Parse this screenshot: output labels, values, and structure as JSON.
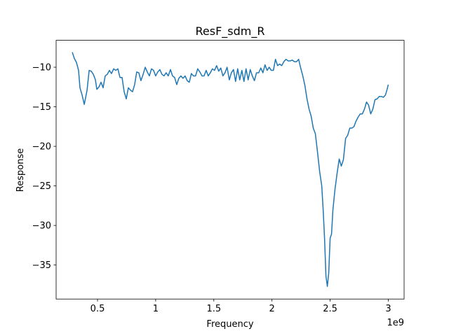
{
  "chart_data": {
    "type": "line",
    "title": "ResF_sdm_R",
    "xlabel": "Frequency",
    "ylabel": "Response",
    "x_offset": "1e9",
    "x": [
      0.283,
      0.301,
      0.319,
      0.337,
      0.349,
      0.367,
      0.386,
      0.398,
      0.41,
      0.428,
      0.446,
      0.464,
      0.482,
      0.494,
      0.512,
      0.53,
      0.548,
      0.566,
      0.584,
      0.602,
      0.62,
      0.639,
      0.657,
      0.675,
      0.693,
      0.711,
      0.729,
      0.747,
      0.765,
      0.783,
      0.801,
      0.819,
      0.837,
      0.855,
      0.873,
      0.892,
      0.91,
      0.928,
      0.946,
      0.964,
      0.982,
      1.0,
      1.018,
      1.036,
      1.054,
      1.072,
      1.09,
      1.108,
      1.127,
      1.145,
      1.163,
      1.181,
      1.199,
      1.217,
      1.235,
      1.253,
      1.271,
      1.289,
      1.307,
      1.325,
      1.343,
      1.361,
      1.38,
      1.398,
      1.416,
      1.434,
      1.452,
      1.47,
      1.488,
      1.506,
      1.524,
      1.542,
      1.56,
      1.578,
      1.596,
      1.614,
      1.633,
      1.651,
      1.669,
      1.687,
      1.705,
      1.723,
      1.741,
      1.759,
      1.777,
      1.795,
      1.813,
      1.831,
      1.849,
      1.867,
      1.886,
      1.904,
      1.922,
      1.94,
      1.958,
      1.976,
      1.994,
      2.012,
      2.03,
      2.048,
      2.066,
      2.084,
      2.102,
      2.12,
      2.139,
      2.157,
      2.175,
      2.193,
      2.211,
      2.229,
      2.247,
      2.265,
      2.283,
      2.301,
      2.319,
      2.337,
      2.355,
      2.373,
      2.392,
      2.41,
      2.428,
      2.44,
      2.452,
      2.464,
      2.476,
      2.488,
      2.5,
      2.512,
      2.524,
      2.542,
      2.56,
      2.578,
      2.596,
      2.614,
      2.633,
      2.651,
      2.669,
      2.687,
      2.705,
      2.723,
      2.741,
      2.759,
      2.777,
      2.795,
      2.813,
      2.831,
      2.849,
      2.867,
      2.886,
      2.904,
      2.922,
      2.94,
      2.958,
      2.976,
      2.988,
      3.0
    ],
    "series": [
      {
        "name": "ResF_sdm_R",
        "color": "#1f77b4",
        "values": [
          -8.1,
          -8.9,
          -9.4,
          -10.4,
          -12.6,
          -13.5,
          -14.7,
          -13.8,
          -12.9,
          -10.4,
          -10.5,
          -10.9,
          -11.6,
          -12.8,
          -12.5,
          -11.9,
          -12.6,
          -11.1,
          -10.9,
          -10.4,
          -10.8,
          -10.2,
          -10.4,
          -10.2,
          -11.3,
          -11.3,
          -13.1,
          -14.0,
          -12.6,
          -12.9,
          -13.1,
          -12.2,
          -10.6,
          -10.7,
          -11.7,
          -10.9,
          -10.0,
          -10.6,
          -11.1,
          -10.2,
          -10.4,
          -11.1,
          -10.6,
          -10.3,
          -10.9,
          -11.1,
          -10.7,
          -11.1,
          -10.3,
          -11.1,
          -11.3,
          -12.2,
          -11.4,
          -11.1,
          -11.4,
          -11.1,
          -11.7,
          -11.9,
          -10.8,
          -11.1,
          -11.1,
          -10.2,
          -10.6,
          -11.1,
          -11.1,
          -10.4,
          -11.1,
          -10.7,
          -10.2,
          -10.4,
          -9.8,
          -10.5,
          -10.1,
          -11.1,
          -10.7,
          -10.0,
          -11.6,
          -10.7,
          -10.3,
          -11.8,
          -10.2,
          -11.6,
          -10.4,
          -11.8,
          -10.2,
          -11.6,
          -10.3,
          -11.1,
          -11.7,
          -10.7,
          -10.7,
          -10.1,
          -10.7,
          -9.7,
          -10.4,
          -10.0,
          -10.4,
          -10.4,
          -9.0,
          -9.8,
          -9.6,
          -9.8,
          -9.3,
          -9.0,
          -9.2,
          -9.2,
          -9.1,
          -9.3,
          -9.3,
          -9.0,
          -10.1,
          -11.1,
          -12.3,
          -14.0,
          -15.3,
          -16.2,
          -17.7,
          -18.4,
          -20.8,
          -23.2,
          -25.0,
          -28.0,
          -31.6,
          -36.4,
          -37.7,
          -36.0,
          -31.6,
          -31.1,
          -28.0,
          -25.4,
          -23.4,
          -21.6,
          -22.5,
          -21.7,
          -19.0,
          -18.6,
          -17.7,
          -17.7,
          -17.5,
          -16.8,
          -16.3,
          -15.9,
          -15.9,
          -15.3,
          -14.4,
          -14.8,
          -15.9,
          -15.3,
          -14.1,
          -14.0,
          -13.7,
          -13.7,
          -13.8,
          -13.5,
          -12.9,
          -12.2
        ]
      }
    ],
    "xlim": [
      0.144,
      3.136
    ],
    "xticks": [
      0.5,
      1.0,
      1.5,
      2.0,
      2.5,
      3.0
    ],
    "ylim": [
      -39.3,
      -6.6
    ],
    "yticks": [
      {
        "value": -35,
        "label": "−35"
      },
      {
        "value": -30,
        "label": "−30"
      },
      {
        "value": -25,
        "label": "−25"
      },
      {
        "value": -20,
        "label": "−20"
      },
      {
        "value": -15,
        "label": "−15"
      },
      {
        "value": -10,
        "label": "−10"
      }
    ],
    "grid": false
  }
}
